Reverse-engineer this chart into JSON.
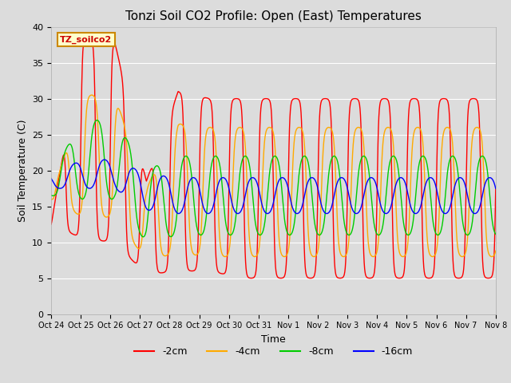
{
  "title": "Tonzi Soil CO2 Profile: Open (East) Temperatures",
  "xlabel": "Time",
  "ylabel": "Soil Temperature (C)",
  "ylim": [
    0,
    40
  ],
  "xlim": [
    0,
    15
  ],
  "bg_color": "#dcdcdc",
  "grid_color": "#ffffff",
  "legend_label": "TZ_soilco2",
  "legend_bg": "#ffffcc",
  "legend_border": "#cc8800",
  "tick_labels": [
    "Oct 24",
    "Oct 25",
    "Oct 26",
    "Oct 27",
    "Oct 28",
    "Oct 29",
    "Oct 30",
    "Oct 31",
    "Nov 1",
    "Nov 2",
    "Nov 3",
    "Nov 4",
    "Nov 5",
    "Nov 6",
    "Nov 7",
    "Nov 8"
  ],
  "depths": [
    "-2cm",
    "-4cm",
    "-8cm",
    "-16cm"
  ],
  "colors": [
    "#ff0000",
    "#ffaa00",
    "#00cc00",
    "#0000ff"
  ],
  "params": {
    "-2cm": {
      "mean": [
        12.5,
        24.5,
        24.0,
        12.0,
        18.5,
        18.0,
        17.5,
        17.5,
        17.5,
        17.5,
        17.5,
        17.5,
        17.5,
        17.5,
        17.5
      ],
      "amp": [
        0.0,
        14.0,
        14.0,
        6.5,
        12.5,
        12.0,
        12.5,
        12.5,
        12.5,
        12.5,
        12.5,
        12.5,
        12.5,
        12.5,
        12.5
      ],
      "phase": 0.0,
      "sharpness": 3.0
    },
    "-4cm": {
      "mean": [
        16.0,
        22.0,
        22.0,
        12.5,
        17.5,
        17.0,
        17.0,
        17.0,
        17.0,
        17.0,
        17.0,
        17.0,
        17.0,
        17.0,
        17.0
      ],
      "amp": [
        0.0,
        8.5,
        8.5,
        5.0,
        9.0,
        9.0,
        9.0,
        9.0,
        9.0,
        9.0,
        9.0,
        9.0,
        9.0,
        9.0,
        9.0
      ],
      "phase": 0.12,
      "sharpness": 2.0
    },
    "-8cm": {
      "mean": [
        18.0,
        21.5,
        21.5,
        15.0,
        16.5,
        16.5,
        16.5,
        16.5,
        16.5,
        16.5,
        16.5,
        16.5,
        16.5,
        16.5,
        16.5
      ],
      "amp": [
        1.5,
        5.5,
        5.5,
        5.0,
        5.5,
        5.5,
        5.5,
        5.5,
        5.5,
        5.5,
        5.5,
        5.5,
        5.5,
        5.5,
        5.5
      ],
      "phase": 0.3,
      "sharpness": 1.2
    },
    "-16cm": {
      "mean": [
        18.5,
        19.5,
        19.5,
        17.0,
        16.5,
        16.5,
        16.5,
        16.5,
        16.5,
        16.5,
        16.5,
        16.5,
        16.5,
        16.5,
        16.5
      ],
      "amp": [
        1.0,
        2.0,
        2.0,
        2.5,
        2.5,
        2.5,
        2.5,
        2.5,
        2.5,
        2.5,
        2.5,
        2.5,
        2.5,
        2.5,
        2.5
      ],
      "phase": 0.55,
      "sharpness": 1.0
    }
  }
}
